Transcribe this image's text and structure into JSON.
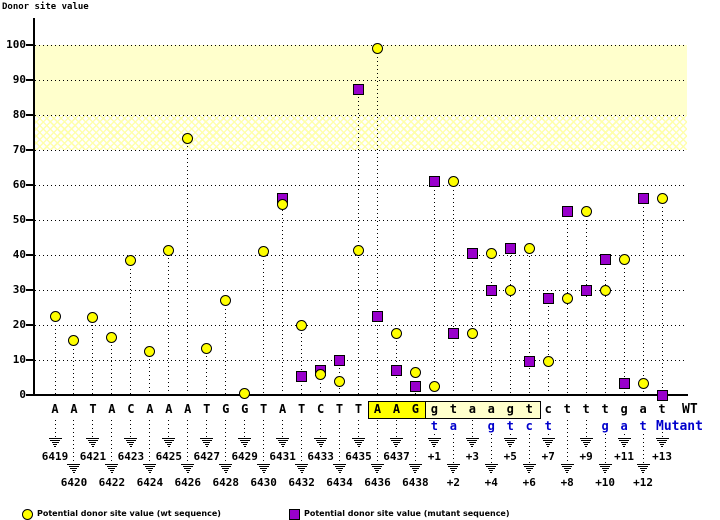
{
  "title": "Donor site value",
  "axis": {
    "wt_row_label": "WT",
    "mutant_row_label": "Mutant"
  },
  "legend": {
    "wt": "Potential donor site value (wt sequence)",
    "mutant": "Potential donor site value (mutant sequence)"
  },
  "colors": {
    "wt_marker": "#ffff00",
    "mutant_marker": "#9900cc",
    "mutant_letter": "#0000cc",
    "band_solid": "#ffffcc",
    "exon_highlight_bg": "#ffff00",
    "intron_box_bg": "#ffffcc"
  },
  "chart_data": {
    "type": "scatter",
    "title": "",
    "xlabel": "",
    "ylabel": "Donor site value",
    "ylim": [
      0,
      100
    ],
    "yticks": [
      100,
      90,
      80,
      70,
      60,
      50,
      40,
      30,
      20,
      10,
      0
    ],
    "grid": "horizontal-dotted",
    "legend_position": "bottom",
    "bands": [
      {
        "from": 80,
        "to": 100,
        "style": "solid",
        "color": "#ffffcc"
      },
      {
        "from": 70,
        "to": 80,
        "style": "hatch",
        "color": "#ffffcc"
      }
    ],
    "series": [
      {
        "name": "Potential donor site value (wt sequence)",
        "marker": "circle",
        "color": "#ffff00"
      },
      {
        "name": "Potential donor site value (mutant sequence)",
        "marker": "square",
        "color": "#9900cc"
      }
    ],
    "positions": [
      {
        "num": "6419",
        "row": 1,
        "wt_base": "A",
        "mut_base": null,
        "wt": 22.3,
        "mut": null,
        "box": null
      },
      {
        "num": "6420",
        "row": 2,
        "wt_base": "A",
        "mut_base": null,
        "wt": 15.5,
        "mut": null,
        "box": null
      },
      {
        "num": "6421",
        "row": 1,
        "wt_base": "T",
        "mut_base": null,
        "wt": 22.2,
        "mut": null,
        "box": null
      },
      {
        "num": "6422",
        "row": 2,
        "wt_base": "A",
        "mut_base": null,
        "wt": 16.5,
        "mut": null,
        "box": null
      },
      {
        "num": "6423",
        "row": 1,
        "wt_base": "C",
        "mut_base": null,
        "wt": 38.4,
        "mut": null,
        "box": null
      },
      {
        "num": "6424",
        "row": 2,
        "wt_base": "A",
        "mut_base": null,
        "wt": 12.5,
        "mut": null,
        "box": null
      },
      {
        "num": "6425",
        "row": 1,
        "wt_base": "A",
        "mut_base": null,
        "wt": 41.4,
        "mut": null,
        "box": null
      },
      {
        "num": "6426",
        "row": 2,
        "wt_base": "A",
        "mut_base": null,
        "wt": 73.4,
        "mut": null,
        "box": null
      },
      {
        "num": "6427",
        "row": 1,
        "wt_base": "T",
        "mut_base": null,
        "wt": 13.4,
        "mut": null,
        "box": null
      },
      {
        "num": "6428",
        "row": 2,
        "wt_base": "G",
        "mut_base": null,
        "wt": 26.9,
        "mut": null,
        "box": null
      },
      {
        "num": "6429",
        "row": 1,
        "wt_base": "G",
        "mut_base": null,
        "wt": 0.4,
        "mut": null,
        "box": null
      },
      {
        "num": "6430",
        "row": 2,
        "wt_base": "T",
        "mut_base": null,
        "wt": 41.0,
        "mut": null,
        "box": null
      },
      {
        "num": "6431",
        "row": 1,
        "wt_base": "A",
        "mut_base": null,
        "wt": 54.3,
        "mut": 56.2,
        "box": null
      },
      {
        "num": "6432",
        "row": 2,
        "wt_base": "T",
        "mut_base": null,
        "wt": 19.9,
        "mut": 5.3,
        "box": null
      },
      {
        "num": "6433",
        "row": 1,
        "wt_base": "C",
        "mut_base": null,
        "wt": 6.0,
        "mut": 7.0,
        "box": null
      },
      {
        "num": "6434",
        "row": 2,
        "wt_base": "T",
        "mut_base": null,
        "wt": 3.9,
        "mut": 9.9,
        "box": null
      },
      {
        "num": "6435",
        "row": 1,
        "wt_base": "T",
        "mut_base": null,
        "wt": 41.2,
        "mut": 87.4,
        "box": null
      },
      {
        "num": "6436",
        "row": 2,
        "wt_base": "A",
        "mut_base": null,
        "wt": 98.9,
        "mut": 22.3,
        "box": "aag"
      },
      {
        "num": "6437",
        "row": 1,
        "wt_base": "A",
        "mut_base": null,
        "wt": 17.6,
        "mut": 7.1,
        "box": "aag"
      },
      {
        "num": "6438",
        "row": 2,
        "wt_base": "G",
        "mut_base": null,
        "wt": 6.4,
        "mut": 2.5,
        "box": "aag"
      },
      {
        "num": "+1",
        "row": 1,
        "wt_base": "g",
        "mut_base": "t",
        "wt": 2.5,
        "mut": 61.0,
        "box": "gt"
      },
      {
        "num": "+2",
        "row": 2,
        "wt_base": "t",
        "mut_base": "a",
        "wt": 61.0,
        "mut": 17.6,
        "box": "gt"
      },
      {
        "num": "+3",
        "row": 1,
        "wt_base": "a",
        "mut_base": null,
        "wt": 17.6,
        "mut": 40.3,
        "box": "gt"
      },
      {
        "num": "+4",
        "row": 2,
        "wt_base": "a",
        "mut_base": "g",
        "wt": 40.3,
        "mut": 30.0,
        "box": "gt"
      },
      {
        "num": "+5",
        "row": 1,
        "wt_base": "g",
        "mut_base": "t",
        "wt": 30.0,
        "mut": 42.0,
        "box": "gt"
      },
      {
        "num": "+6",
        "row": 2,
        "wt_base": "t",
        "mut_base": "c",
        "wt": 42.0,
        "mut": 9.7,
        "box": "gt"
      },
      {
        "num": "+7",
        "row": 1,
        "wt_base": "c",
        "mut_base": "t",
        "wt": 9.7,
        "mut": 27.6,
        "box": null
      },
      {
        "num": "+8",
        "row": 2,
        "wt_base": "t",
        "mut_base": null,
        "wt": 27.6,
        "mut": 52.4,
        "box": null
      },
      {
        "num": "+9",
        "row": 1,
        "wt_base": "t",
        "mut_base": null,
        "wt": 52.4,
        "mut": 30.0,
        "box": null
      },
      {
        "num": "+10",
        "row": 2,
        "wt_base": "t",
        "mut_base": "g",
        "wt": 30.0,
        "mut": 38.6,
        "box": null
      },
      {
        "num": "+11",
        "row": 1,
        "wt_base": "g",
        "mut_base": "a",
        "wt": 38.6,
        "mut": 3.2,
        "box": null
      },
      {
        "num": "+12",
        "row": 2,
        "wt_base": "a",
        "mut_base": "t",
        "wt": 3.2,
        "mut": 56.1,
        "box": null
      },
      {
        "num": "+13",
        "row": 1,
        "wt_base": "t",
        "mut_base": null,
        "wt": 56.1,
        "mut": 0.0,
        "box": null
      }
    ]
  }
}
